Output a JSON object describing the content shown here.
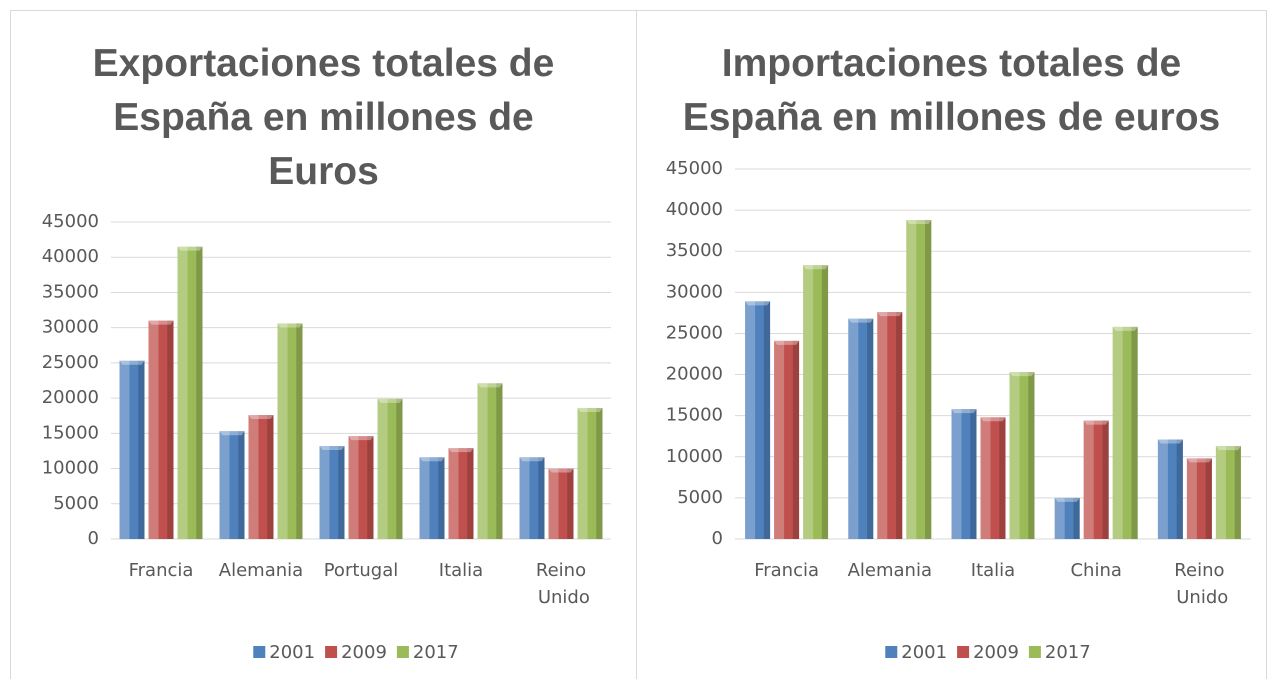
{
  "chart_data": [
    {
      "type": "bar",
      "title": "Exportaciones totales de España en millones de Euros",
      "categories": [
        "Francia",
        "Alemania",
        "Portugal",
        "Italia",
        "Reino Unido"
      ],
      "series": [
        {
          "name": "2001",
          "color": "#4f81bd",
          "values": [
            25300,
            15300,
            13200,
            11600,
            11600
          ]
        },
        {
          "name": "2009",
          "color": "#c0504d",
          "values": [
            31000,
            17600,
            14600,
            12900,
            10000
          ]
        },
        {
          "name": "2017",
          "color": "#9bbb59",
          "values": [
            41500,
            30600,
            19900,
            22100,
            18600
          ]
        }
      ],
      "ylim": [
        0,
        45000
      ],
      "yticks": [
        0,
        5000,
        10000,
        15000,
        20000,
        25000,
        30000,
        35000,
        40000,
        45000
      ],
      "grid": true,
      "legend": "bottom"
    },
    {
      "type": "bar",
      "title": "Importaciones totales de España en millones de euros",
      "categories": [
        "Francia",
        "Alemania",
        "Italia",
        "China",
        "Reino Unido"
      ],
      "series": [
        {
          "name": "2001",
          "color": "#4f81bd",
          "values": [
            28900,
            26800,
            15800,
            5000,
            12100
          ]
        },
        {
          "name": "2009",
          "color": "#c0504d",
          "values": [
            24100,
            27600,
            14800,
            14400,
            9800
          ]
        },
        {
          "name": "2017",
          "color": "#9bbb59",
          "values": [
            33300,
            38800,
            20300,
            25800,
            11300
          ]
        }
      ],
      "ylim": [
        0,
        45000
      ],
      "yticks": [
        0,
        5000,
        10000,
        15000,
        20000,
        25000,
        30000,
        35000,
        40000,
        45000
      ],
      "grid": true,
      "legend": "bottom"
    }
  ]
}
